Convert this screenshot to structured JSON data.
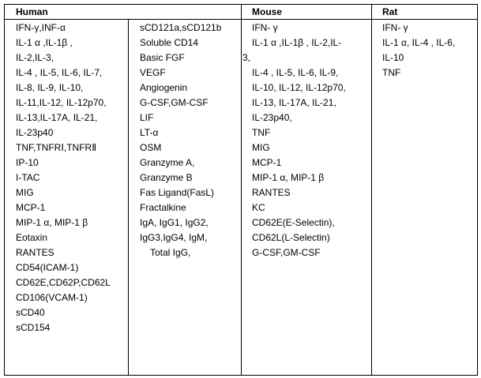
{
  "headers": {
    "human": "Human",
    "mouse": "Mouse",
    "rat": "Rat"
  },
  "human_col1": [
    "IFN-γ,INF-α",
    "IL-1 α   ,IL-1β ,",
    "IL-2,IL-3,",
    "IL-4 , IL-5, IL-6, IL-7,",
    "IL-8, IL-9, IL-10,",
    "IL-11,IL-12, IL-12p70,",
    "IL-13,IL-17A, IL-21,",
    "IL-23p40",
    "TNF,TNFRⅠ,TNFRⅡ",
    "IP-10",
    "I-TAC",
    "MIG",
    "MCP-1",
    "MIP-1 α, MIP-1 β",
    "Eotaxin",
    "RANTES",
    "CD54(ICAM-1)",
    "CD62E,CD62P,CD62L",
    "CD106(VCAM-1)",
    "sCD40",
    "sCD154"
  ],
  "human_col2": [
    "sCD121a,sCD121b",
    "Soluble CD14",
    "Basic FGF",
    "VEGF",
    "Angiogenin",
    "G-CSF,GM-CSF",
    "LIF",
    "LT-α",
    "OSM",
    "Granzyme A,",
    "Granzyme B",
    "Fas Ligand(FasL)",
    "Fractalkine",
    "IgA, IgG1, IgG2,",
    "IgG3,IgG4, IgM,",
    "Total IgG,"
  ],
  "mouse": [
    "IFN- γ",
    "IL-1 α   ,IL-1β , IL-2,IL-",
    "3,",
    "IL-4 , IL-5, IL-6, IL-9,",
    "IL-10, IL-12, IL-12p70,",
    "IL-13, IL-17A, IL-21,",
    "IL-23p40,",
    "TNF",
    "MIG",
    "MCP-1",
    "MIP-1 α, MIP-1 β",
    "RANTES",
    "KC",
    "CD62E(E-Selectin),",
    "CD62L(L-Selectin)",
    "G-CSF,GM-CSF"
  ],
  "rat": [
    "IFN- γ",
    "IL-1 α, IL-4 , IL-6,",
    "IL-10",
    "TNF"
  ]
}
